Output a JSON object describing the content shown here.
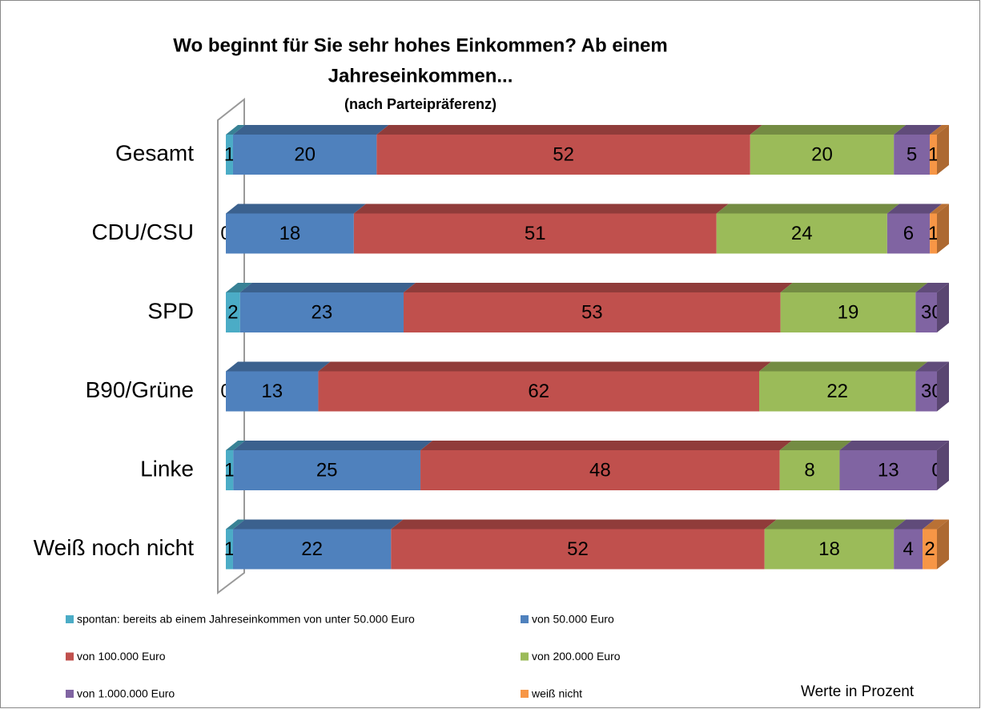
{
  "chart_data": {
    "type": "bar",
    "orientation": "horizontal",
    "stacked": "percent",
    "title": [
      "Wo beginnt für Sie sehr hohes Einkommen? Ab einem",
      "Jahreseinkommen..."
    ],
    "subtitle": "(nach Parteipräferenz)",
    "annotation": "Werte in Prozent",
    "categories": [
      "Gesamt",
      "CDU/CSU",
      "SPD",
      "B90/Grüne",
      "Linke",
      "Weiß noch nicht"
    ],
    "series": [
      {
        "name": "spontan: bereits ab einem Jahreseinkommen von unter 50.000 Euro",
        "color": "#4bacc6",
        "values": [
          1,
          0,
          2,
          0,
          1,
          1
        ]
      },
      {
        "name": "von 50.000 Euro",
        "color": "#4f81bd",
        "values": [
          20,
          18,
          23,
          13,
          25,
          22
        ]
      },
      {
        "name": "von 100.000 Euro",
        "color": "#c0504d",
        "values": [
          52,
          51,
          53,
          62,
          48,
          52
        ]
      },
      {
        "name": "von 200.000 Euro",
        "color": "#9bbb59",
        "values": [
          20,
          24,
          19,
          22,
          8,
          18
        ]
      },
      {
        "name": "von 1.000.000 Euro",
        "color": "#8064a2",
        "values": [
          5,
          6,
          3,
          3,
          13,
          4
        ]
      },
      {
        "name": "weiß nicht",
        "color": "#f79646",
        "values": [
          1,
          1,
          0,
          0,
          0,
          2
        ]
      }
    ],
    "legend": "bottom"
  }
}
